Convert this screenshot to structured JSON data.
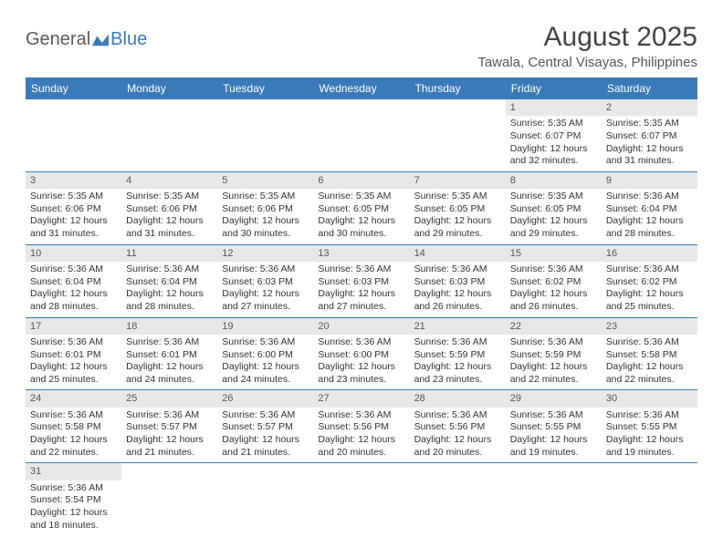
{
  "logo": {
    "text1": "General",
    "text2": "Blue"
  },
  "header": {
    "title": "August 2025",
    "location": "Tawala, Central Visayas, Philippines"
  },
  "calendar": {
    "weekdays": [
      "Sunday",
      "Monday",
      "Tuesday",
      "Wednesday",
      "Thursday",
      "Friday",
      "Saturday"
    ],
    "colors": {
      "header_bg": "#3b7ab8",
      "header_text": "#ffffff",
      "daynum_bg": "#e8e8e8",
      "border": "#3b7ab8",
      "text": "#333333"
    },
    "weeks": [
      [
        null,
        null,
        null,
        null,
        null,
        {
          "n": "1",
          "sunrise": "5:35 AM",
          "sunset": "6:07 PM",
          "daylight": "12 hours and 32 minutes."
        },
        {
          "n": "2",
          "sunrise": "5:35 AM",
          "sunset": "6:07 PM",
          "daylight": "12 hours and 31 minutes."
        }
      ],
      [
        {
          "n": "3",
          "sunrise": "5:35 AM",
          "sunset": "6:06 PM",
          "daylight": "12 hours and 31 minutes."
        },
        {
          "n": "4",
          "sunrise": "5:35 AM",
          "sunset": "6:06 PM",
          "daylight": "12 hours and 31 minutes."
        },
        {
          "n": "5",
          "sunrise": "5:35 AM",
          "sunset": "6:06 PM",
          "daylight": "12 hours and 30 minutes."
        },
        {
          "n": "6",
          "sunrise": "5:35 AM",
          "sunset": "6:05 PM",
          "daylight": "12 hours and 30 minutes."
        },
        {
          "n": "7",
          "sunrise": "5:35 AM",
          "sunset": "6:05 PM",
          "daylight": "12 hours and 29 minutes."
        },
        {
          "n": "8",
          "sunrise": "5:35 AM",
          "sunset": "6:05 PM",
          "daylight": "12 hours and 29 minutes."
        },
        {
          "n": "9",
          "sunrise": "5:36 AM",
          "sunset": "6:04 PM",
          "daylight": "12 hours and 28 minutes."
        }
      ],
      [
        {
          "n": "10",
          "sunrise": "5:36 AM",
          "sunset": "6:04 PM",
          "daylight": "12 hours and 28 minutes."
        },
        {
          "n": "11",
          "sunrise": "5:36 AM",
          "sunset": "6:04 PM",
          "daylight": "12 hours and 28 minutes."
        },
        {
          "n": "12",
          "sunrise": "5:36 AM",
          "sunset": "6:03 PM",
          "daylight": "12 hours and 27 minutes."
        },
        {
          "n": "13",
          "sunrise": "5:36 AM",
          "sunset": "6:03 PM",
          "daylight": "12 hours and 27 minutes."
        },
        {
          "n": "14",
          "sunrise": "5:36 AM",
          "sunset": "6:03 PM",
          "daylight": "12 hours and 26 minutes."
        },
        {
          "n": "15",
          "sunrise": "5:36 AM",
          "sunset": "6:02 PM",
          "daylight": "12 hours and 26 minutes."
        },
        {
          "n": "16",
          "sunrise": "5:36 AM",
          "sunset": "6:02 PM",
          "daylight": "12 hours and 25 minutes."
        }
      ],
      [
        {
          "n": "17",
          "sunrise": "5:36 AM",
          "sunset": "6:01 PM",
          "daylight": "12 hours and 25 minutes."
        },
        {
          "n": "18",
          "sunrise": "5:36 AM",
          "sunset": "6:01 PM",
          "daylight": "12 hours and 24 minutes."
        },
        {
          "n": "19",
          "sunrise": "5:36 AM",
          "sunset": "6:00 PM",
          "daylight": "12 hours and 24 minutes."
        },
        {
          "n": "20",
          "sunrise": "5:36 AM",
          "sunset": "6:00 PM",
          "daylight": "12 hours and 23 minutes."
        },
        {
          "n": "21",
          "sunrise": "5:36 AM",
          "sunset": "5:59 PM",
          "daylight": "12 hours and 23 minutes."
        },
        {
          "n": "22",
          "sunrise": "5:36 AM",
          "sunset": "5:59 PM",
          "daylight": "12 hours and 22 minutes."
        },
        {
          "n": "23",
          "sunrise": "5:36 AM",
          "sunset": "5:58 PM",
          "daylight": "12 hours and 22 minutes."
        }
      ],
      [
        {
          "n": "24",
          "sunrise": "5:36 AM",
          "sunset": "5:58 PM",
          "daylight": "12 hours and 22 minutes."
        },
        {
          "n": "25",
          "sunrise": "5:36 AM",
          "sunset": "5:57 PM",
          "daylight": "12 hours and 21 minutes."
        },
        {
          "n": "26",
          "sunrise": "5:36 AM",
          "sunset": "5:57 PM",
          "daylight": "12 hours and 21 minutes."
        },
        {
          "n": "27",
          "sunrise": "5:36 AM",
          "sunset": "5:56 PM",
          "daylight": "12 hours and 20 minutes."
        },
        {
          "n": "28",
          "sunrise": "5:36 AM",
          "sunset": "5:56 PM",
          "daylight": "12 hours and 20 minutes."
        },
        {
          "n": "29",
          "sunrise": "5:36 AM",
          "sunset": "5:55 PM",
          "daylight": "12 hours and 19 minutes."
        },
        {
          "n": "30",
          "sunrise": "5:36 AM",
          "sunset": "5:55 PM",
          "daylight": "12 hours and 19 minutes."
        }
      ],
      [
        {
          "n": "31",
          "sunrise": "5:36 AM",
          "sunset": "5:54 PM",
          "daylight": "12 hours and 18 minutes."
        },
        null,
        null,
        null,
        null,
        null,
        null
      ]
    ],
    "labels": {
      "sunrise_prefix": "Sunrise: ",
      "sunset_prefix": "Sunset: ",
      "daylight_prefix": "Daylight: "
    }
  }
}
